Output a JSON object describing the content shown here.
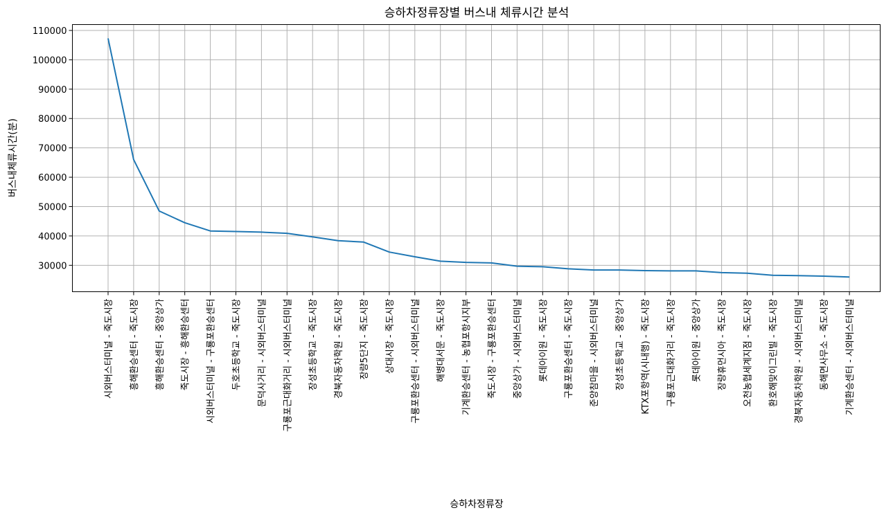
{
  "chart_data": {
    "type": "line",
    "title": "승하차정류장별 버스내 체류시간 분석",
    "xlabel": "승하차정류장",
    "ylabel": "버스내체류시간(분)",
    "ylim": [
      21000,
      112000
    ],
    "yticks": [
      30000,
      40000,
      50000,
      60000,
      70000,
      80000,
      90000,
      100000,
      110000
    ],
    "grid": true,
    "line_color": "#1f77b4",
    "categories": [
      "시외버스터미널 - 죽도시장",
      "흥해환승센터 - 죽도시장",
      "흥해환승센터 - 중앙상가",
      "죽도시장 - 흥해환승센터",
      "시외버스터미널 - 구룡포환승센터",
      "두호초등학교 - 죽도시장",
      "문덕사거리 - 시외버스터미널",
      "구룡포근대화거리 - 시외버스터미널",
      "장성초등학교 - 죽도시장",
      "경북자동차학원 - 죽도시장",
      "장량5단지 - 죽도시장",
      "상대시장 - 죽도시장",
      "구룡포환승센터 - 시외버스터미널",
      "해병대서문 - 죽도시장",
      "기계환승센터 - 농협포항시지부",
      "죽도시장 - 구룡포환승센터",
      "중앙상가 - 시외버스터미널",
      "롯데아이원 - 죽도시장",
      "구룡포환승센터 - 죽도시장",
      "준양참마을 - 시외버스터미널",
      "장성초등학교 - 중앙상가",
      "KTX포항역(시내행) - 죽도시장",
      "구룡포근대화거리 - 죽도시장",
      "롯데아이원 - 중앙상가",
      "장량휴먼시아 - 죽도시장",
      "오천농협세계지점 - 죽도시장",
      "환호해맞이그린빌 - 죽도시장",
      "경북자동차학원 - 시외버스터미널",
      "동해면사무소 - 죽도시장",
      "기계환승센터 - 시외버스터미널"
    ],
    "series": [
      {
        "values": [
          107300,
          66000,
          48500,
          44500,
          41700,
          41500,
          41300,
          40900,
          39700,
          38400,
          37900,
          34500,
          32900,
          31400,
          31000,
          30800,
          29700,
          29500,
          28800,
          28400,
          28400,
          28200,
          28100,
          28100,
          27500,
          27300,
          26600,
          26500,
          26300,
          26000
        ]
      }
    ]
  }
}
